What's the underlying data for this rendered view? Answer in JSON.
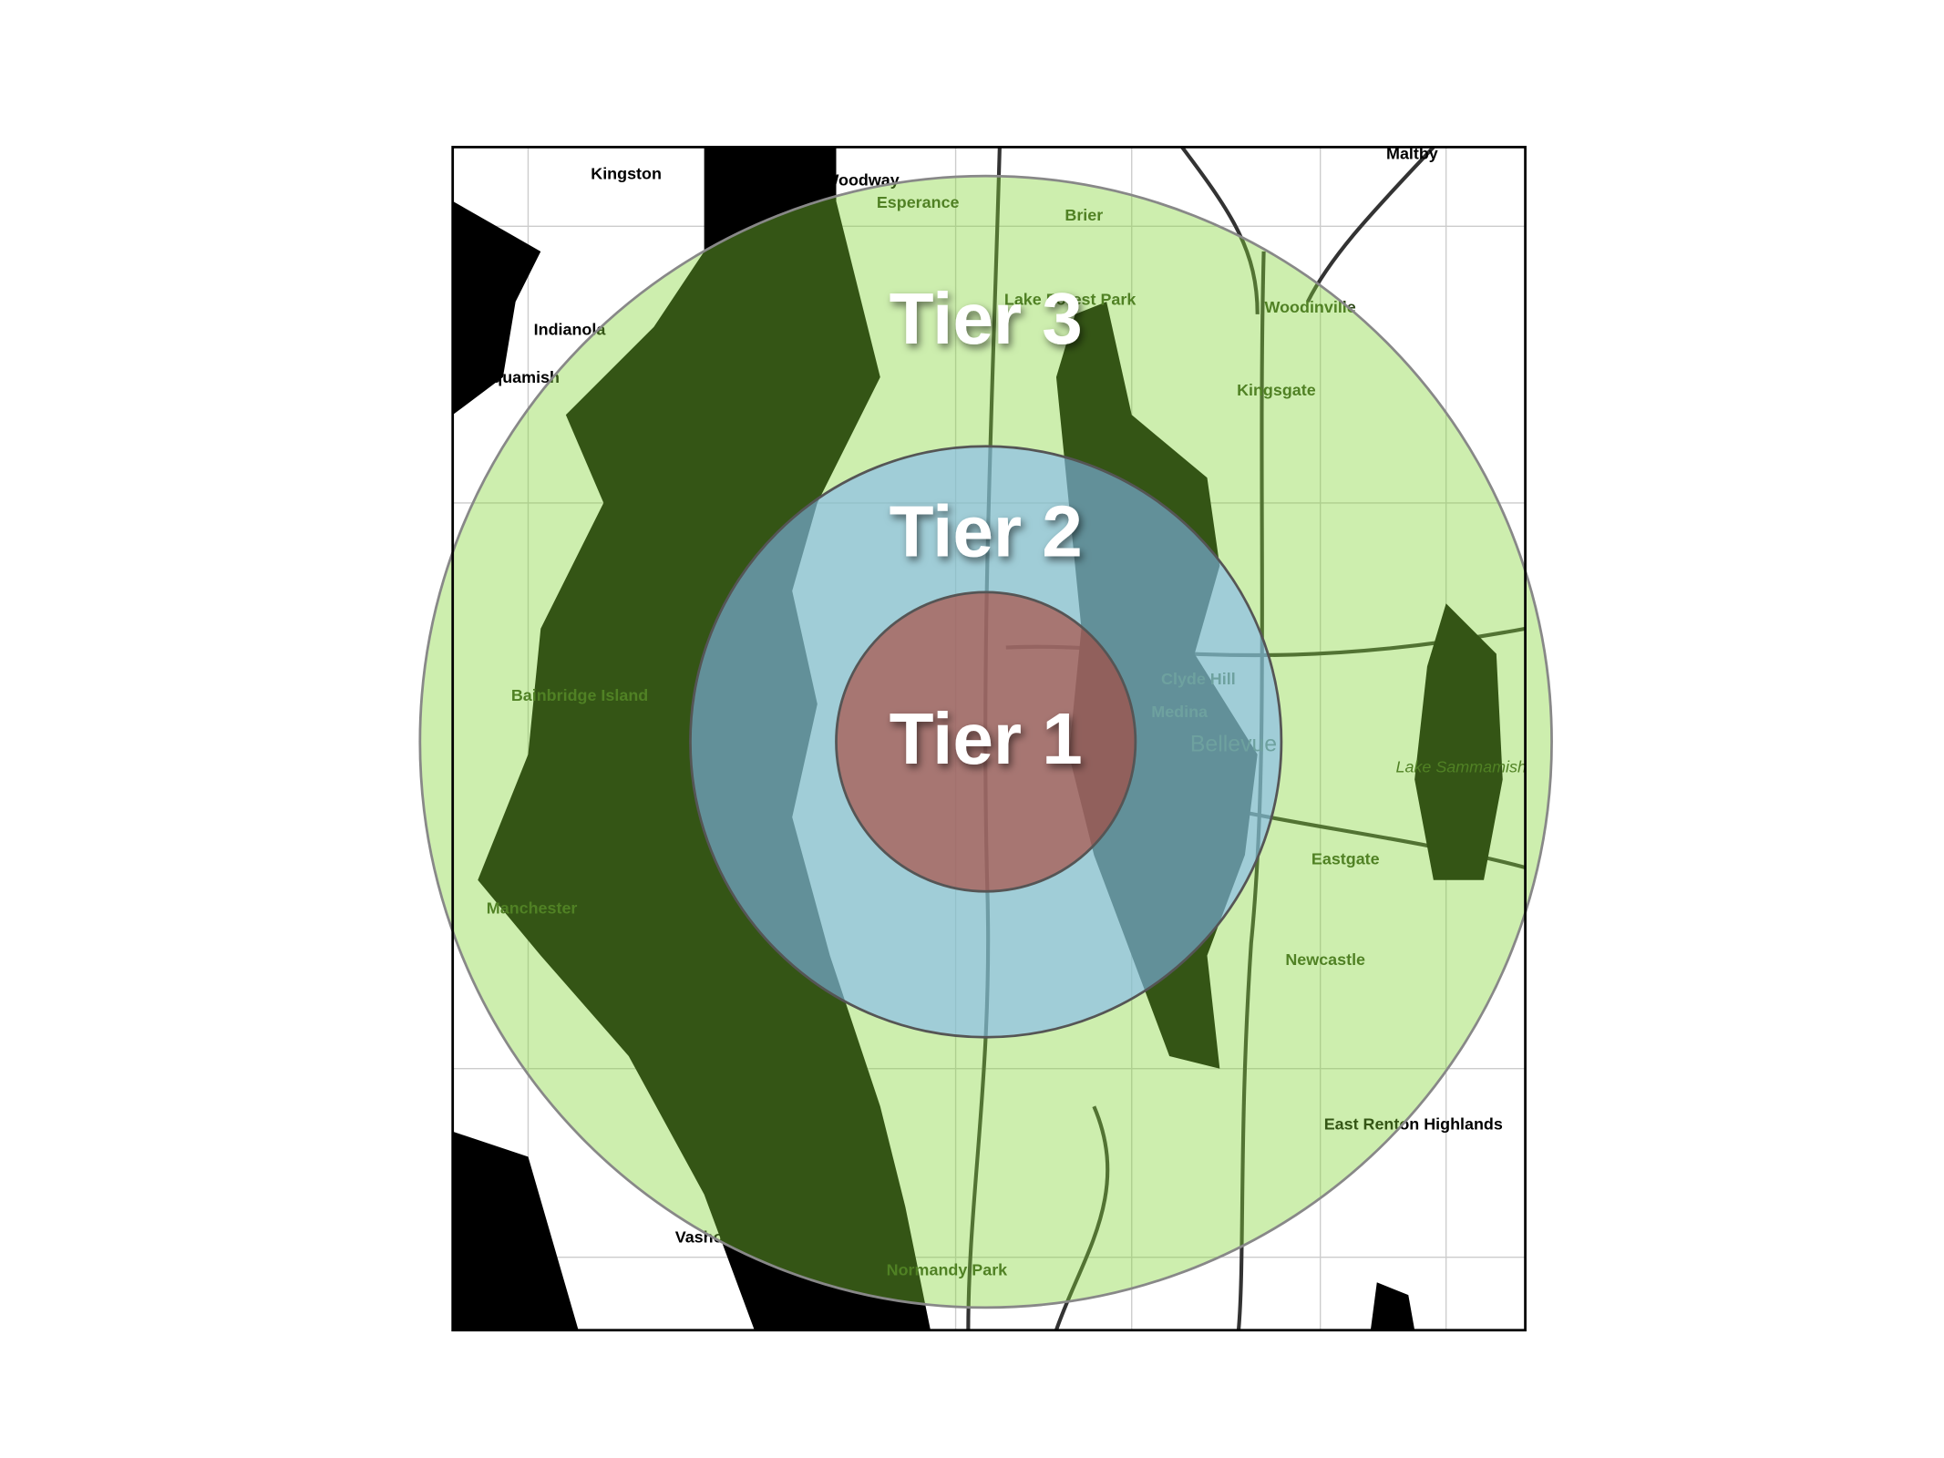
{
  "tiers": [
    {
      "label": "Tier 3"
    },
    {
      "label": "Tier 2"
    },
    {
      "label": "Tier 1"
    }
  ],
  "places": [
    "Kingston",
    "Woodway",
    "Maltby",
    "Esperance",
    "Brier",
    "Lake Forest Park",
    "Woodinville",
    "Indianola",
    "Suquamish",
    "Kingsgate",
    "Clyde Hill",
    "Medina",
    "Bellevue",
    "Lake Sammamish",
    "Bainbridge Island",
    "Eastgate",
    "Manchester",
    "Newcastle",
    "East Renton Highlands",
    "Vashon",
    "Normandy Park"
  ]
}
